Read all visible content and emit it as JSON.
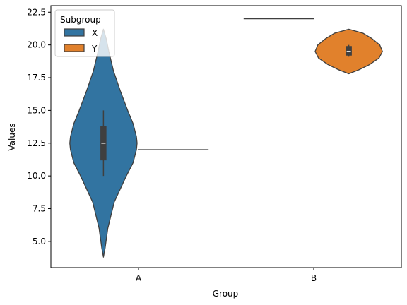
{
  "chart_data": {
    "type": "violin",
    "xlabel": "Group",
    "ylabel": "Values",
    "categories": [
      "A",
      "B"
    ],
    "ylim": [
      3.0,
      23.0
    ],
    "yticks": [
      5.0,
      7.5,
      10.0,
      12.5,
      15.0,
      17.5,
      20.0,
      22.5
    ],
    "ytick_labels": [
      "5.0",
      "7.5",
      "10.0",
      "12.5",
      "15.0",
      "17.5",
      "20.0",
      "22.5"
    ],
    "grid": false,
    "legend": {
      "title": "Subgroup",
      "placement": "top-left"
    },
    "series": [
      {
        "name": "X",
        "color": "#3274a1",
        "groups": [
          {
            "category": "A",
            "min": 10,
            "q1": 11.2,
            "median": 12.5,
            "q3": 13.8,
            "max": 15,
            "violin_extent": [
              3.8,
              21.2
            ],
            "density": [
              [
                3.8,
                0.0
              ],
              [
                4.5,
                0.05
              ],
              [
                6.0,
                0.13
              ],
              [
                8.0,
                0.32
              ],
              [
                10.0,
                0.68
              ],
              [
                11.0,
                0.88
              ],
              [
                12.0,
                0.98
              ],
              [
                12.5,
                1.0
              ],
              [
                13.0,
                0.98
              ],
              [
                14.0,
                0.88
              ],
              [
                15.0,
                0.72
              ],
              [
                16.5,
                0.5
              ],
              [
                18.0,
                0.3
              ],
              [
                19.5,
                0.16
              ],
              [
                20.5,
                0.08
              ],
              [
                21.2,
                0.0
              ]
            ]
          },
          {
            "category": "B",
            "value": 22.0
          }
        ]
      },
      {
        "name": "Y",
        "color": "#e1812c",
        "groups": [
          {
            "category": "A",
            "value": 12.0
          },
          {
            "category": "B",
            "min": 19.1,
            "q1": 19.2,
            "median": 19.5,
            "q3": 19.9,
            "max": 20.0,
            "violin_extent": [
              17.8,
              21.2
            ],
            "density": [
              [
                17.8,
                0.0
              ],
              [
                18.1,
                0.3
              ],
              [
                18.5,
                0.62
              ],
              [
                19.0,
                0.9
              ],
              [
                19.5,
                1.0
              ],
              [
                20.0,
                0.92
              ],
              [
                20.5,
                0.68
              ],
              [
                20.9,
                0.42
              ],
              [
                21.2,
                0.0
              ]
            ]
          }
        ]
      }
    ]
  }
}
